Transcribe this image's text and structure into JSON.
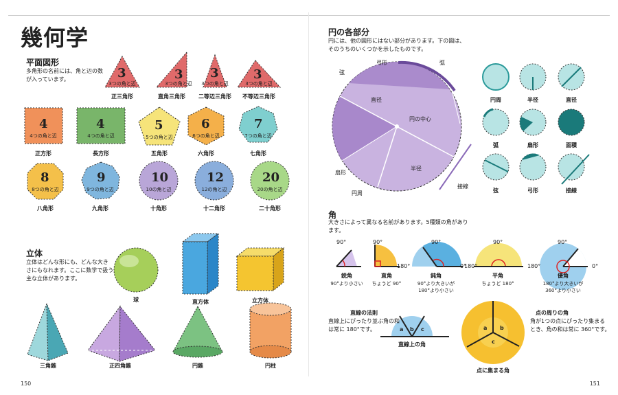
{
  "left": {
    "title": "幾何学",
    "plane": {
      "heading": "平面図形",
      "intro": [
        "多角形の名前には、角と辺の数",
        "が入っています。"
      ],
      "triangles": [
        {
          "num": "3",
          "sub": "3つの角と辺",
          "name": "正三角形",
          "color": "#e06a6a"
        },
        {
          "num": "3",
          "sub": "3つの角と辺",
          "name": "直角三角形",
          "color": "#e06a6a"
        },
        {
          "num": "3",
          "sub": "3つの角と辺",
          "name": "二等辺三角形",
          "color": "#e06a6a"
        },
        {
          "num": "3",
          "sub": "3つの角と辺",
          "name": "不等辺三角形",
          "color": "#e06a6a"
        }
      ],
      "polys": [
        {
          "num": "4",
          "sub": "4つの角と辺",
          "name": "正方形",
          "color": "#f0915a"
        },
        {
          "num": "4",
          "sub": "4つの角と辺",
          "name": "長方形",
          "color": "#79b56a"
        },
        {
          "num": "5",
          "sub": "5つの角と辺",
          "name": "五角形",
          "color": "#f6e47a"
        },
        {
          "num": "6",
          "sub": "6つの角と辺",
          "name": "六角形",
          "color": "#f4b04a"
        },
        {
          "num": "7",
          "sub": "7つの角と辺",
          "name": "七角形",
          "color": "#7fcfcf"
        },
        {
          "num": "8",
          "sub": "8つの角と辺",
          "name": "八角形",
          "color": "#f4c04a"
        },
        {
          "num": "9",
          "sub": "9つの角と辺",
          "name": "九角形",
          "color": "#7fb6de"
        },
        {
          "num": "10",
          "sub": "10の角と辺",
          "name": "十角形",
          "color": "#b9a6d8"
        },
        {
          "num": "12",
          "sub": "12の角と辺",
          "name": "十二角形",
          "color": "#8aaedc"
        },
        {
          "num": "20",
          "sub": "20の角と辺",
          "name": "二十角形",
          "color": "#a8d888"
        }
      ]
    },
    "solid": {
      "heading": "立体",
      "intro": [
        "立体はどんな形にも、どんな大き",
        "さにもなれます。ここに数学で扱う",
        "主な立体があります。"
      ],
      "names": [
        "球",
        "直方体",
        "立方体",
        "三角錐",
        "正四角錐",
        "円錐",
        "円柱"
      ]
    },
    "page_number": "150"
  },
  "right": {
    "circle": {
      "heading": "円の各部分",
      "intro": [
        "円には、他の図形にはない部分があります。下の図は、",
        "そのうちのいくつかを示したものです。"
      ],
      "labels": {
        "arc": "弓形",
        "arc2": "弧",
        "chord": "弦",
        "diameter": "直径",
        "center": "円の中心",
        "sector": "扇形",
        "radius": "半径",
        "tangent": "接線",
        "circumference": "円周"
      },
      "small": [
        "円周",
        "半径",
        "直径",
        "弧",
        "扇形",
        "面積",
        "弦",
        "弓形",
        "接線"
      ]
    },
    "angles": {
      "heading": "角",
      "intro": [
        "大きさによって異なる名前があります。5種類の角があり",
        "ます。"
      ],
      "deg90": "90°",
      "deg180": "180°",
      "deg0": "0°",
      "items": [
        {
          "name": "鋭角",
          "desc": [
            "90°より小さい"
          ]
        },
        {
          "name": "直角",
          "desc": [
            "ちょうど 90°"
          ]
        },
        {
          "name": "鈍角",
          "desc": [
            "90°より大きいが",
            "180°より小さい"
          ]
        },
        {
          "name": "平角",
          "desc": [
            "ちょうど 180°"
          ]
        },
        {
          "name": "優角",
          "desc": [
            "180°より大きいが",
            "360°より小さい"
          ]
        }
      ],
      "line_rule": {
        "title": "直線の法則",
        "text": [
          "直線上にぴったり並ぶ角の和",
          "は常に 180°です。"
        ],
        "caption": "直線上の角"
      },
      "point_rule": {
        "title": "点の周りの角",
        "text": [
          "角が1つの点にぴったり集まる",
          "とき、角の和は常に 360°です。"
        ],
        "caption": "点に集まる角"
      },
      "abc": [
        "a",
        "b",
        "c"
      ]
    },
    "page_number": "151"
  }
}
